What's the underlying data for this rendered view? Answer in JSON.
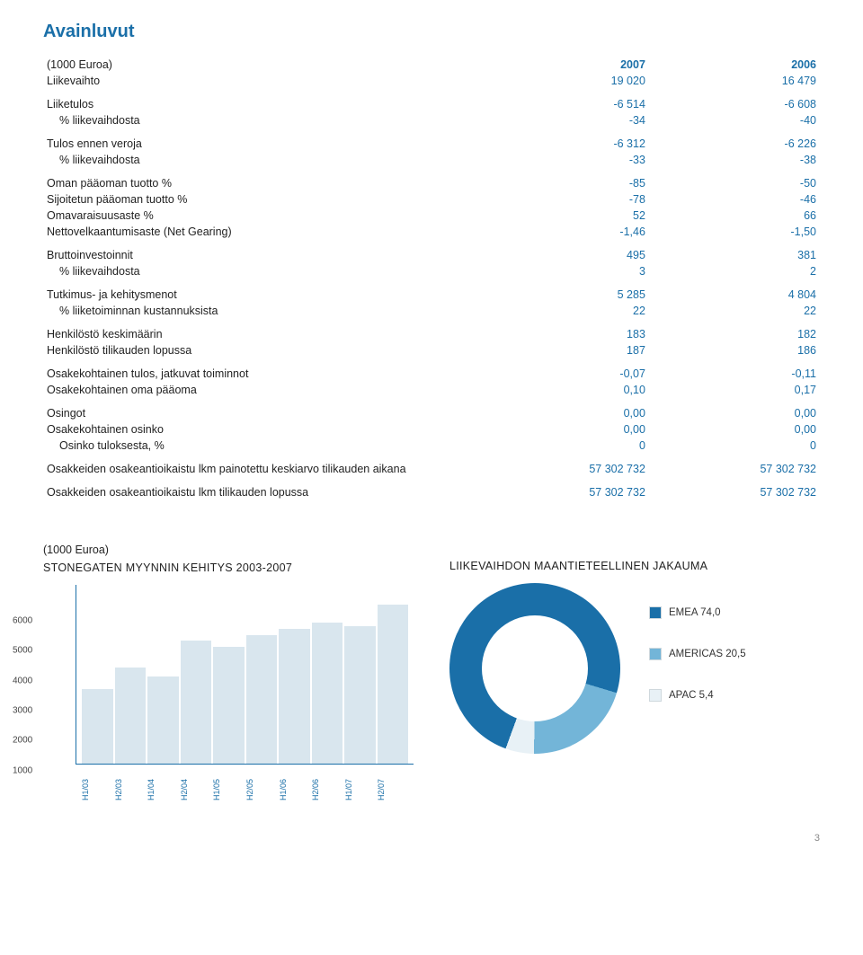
{
  "page": {
    "title": "Avainluvut",
    "unitNote": "(1000 Euroa)",
    "pageNumber": "3"
  },
  "table": {
    "colHeaderLabel": "Liikevaihto",
    "years": [
      "2007",
      "2006"
    ],
    "revenue": [
      "19 020",
      "16 479"
    ],
    "rows": [
      {
        "label": "Liiketulos",
        "v1": "-6 514",
        "v2": "-6 608",
        "gap": true
      },
      {
        "label": "% liikevaihdosta",
        "v1": "-34",
        "v2": "-40",
        "indent": true
      },
      {
        "label": "Tulos ennen veroja",
        "v1": "-6 312",
        "v2": "-6 226",
        "gap": true
      },
      {
        "label": "% liikevaihdosta",
        "v1": "-33",
        "v2": "-38",
        "indent": true
      },
      {
        "label": "Oman pääoman tuotto %",
        "v1": "-85",
        "v2": "-50",
        "gap": true
      },
      {
        "label": "Sijoitetun pääoman tuotto %",
        "v1": "-78",
        "v2": "-46"
      },
      {
        "label": "Omavaraisuusaste %",
        "v1": "52",
        "v2": "66"
      },
      {
        "label": "Nettovelkaantumisaste (Net Gearing)",
        "v1": "-1,46",
        "v2": "-1,50"
      },
      {
        "label": "Bruttoinvestoinnit",
        "v1": "495",
        "v2": "381",
        "gap": true
      },
      {
        "label": "% liikevaihdosta",
        "v1": "3",
        "v2": "2",
        "indent": true
      },
      {
        "label": "Tutkimus- ja kehitysmenot",
        "v1": "5 285",
        "v2": "4 804",
        "gap": true
      },
      {
        "label": "% liiketoiminnan kustannuksista",
        "v1": "22",
        "v2": "22",
        "indent": true
      },
      {
        "label": "Henkilöstö keskimäärin",
        "v1": "183",
        "v2": "182",
        "gap": true
      },
      {
        "label": "Henkilöstö tilikauden lopussa",
        "v1": "187",
        "v2": "186"
      },
      {
        "label": "Osakekohtainen tulos, jatkuvat toiminnot",
        "v1": "-0,07",
        "v2": "-0,11",
        "gap": true
      },
      {
        "label": "Osakekohtainen oma pääoma",
        "v1": "0,10",
        "v2": "0,17"
      },
      {
        "label": "Osingot",
        "v1": "0,00",
        "v2": "0,00",
        "gap": true
      },
      {
        "label": "Osakekohtainen osinko",
        "v1": "0,00",
        "v2": "0,00"
      },
      {
        "label": "Osinko tuloksesta, %",
        "v1": "0",
        "v2": "0",
        "indent": true
      },
      {
        "label": "Osakkeiden osakeantioikaistu lkm painotettu keskiarvo tilikauden aikana",
        "v1": "57 302 732",
        "v2": "57 302 732",
        "gap": true
      },
      {
        "label": "Osakkeiden osakeantioikaistu lkm tilikauden lopussa",
        "v1": "57 302 732",
        "v2": "57 302 732",
        "gap": true
      }
    ]
  },
  "barChart": {
    "unitNote": "(1000 Euroa)",
    "title": "STONEGATEN MYYNNIN KEHITYS 2003-2007",
    "type": "bar",
    "ymax": 6000,
    "ytickStep": 1000,
    "yticks": [
      "6000",
      "5000",
      "4000",
      "3000",
      "2000",
      "1000"
    ],
    "barColor": "#d9e6ee",
    "axisColor": "#1a6fa8",
    "categories": [
      "H1/03",
      "H2/03",
      "H1/04",
      "H2/04",
      "H1/05",
      "H2/05",
      "H1/06",
      "H2/06",
      "H1/07",
      "H2/07"
    ],
    "values": [
      2500,
      3200,
      2900,
      4100,
      3900,
      4300,
      4500,
      4700,
      4600,
      5300
    ]
  },
  "donutChart": {
    "title": "LIIKEVAIHDON MAANTIETEELLINEN JAKAUMA",
    "type": "donut",
    "segments": [
      {
        "label": "EMEA 74,0",
        "value": 74.0,
        "color": "#1a6fa8"
      },
      {
        "label": "AMERICAS 20,5",
        "value": 20.5,
        "color": "#73b5d8"
      },
      {
        "label": "APAC 5,4",
        "value": 5.4,
        "color": "#e8f1f6"
      }
    ],
    "innerColor": "#ffffff",
    "borderColor": "#cfd8dd"
  }
}
